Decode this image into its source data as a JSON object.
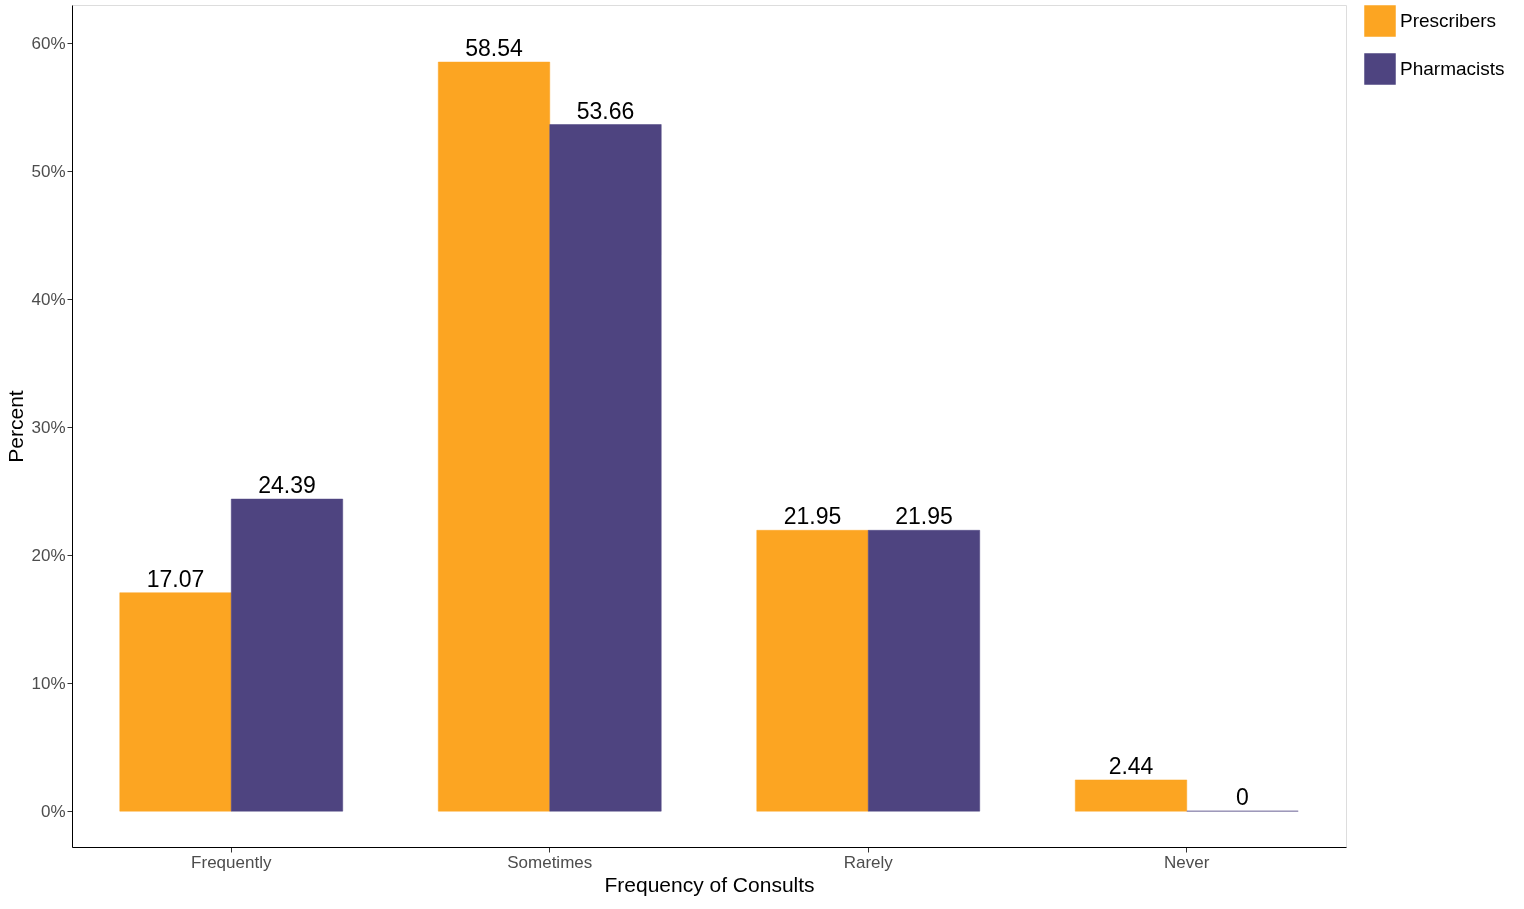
{
  "chart_data": {
    "type": "bar",
    "xlabel": "Frequency of Consults",
    "ylabel": "Percent",
    "categories": [
      "Frequently",
      "Sometimes",
      "Rarely",
      "Never"
    ],
    "series": [
      {
        "name": "Prescribers",
        "color": "#fca522",
        "values": [
          17.07,
          58.54,
          21.95,
          2.44
        ]
      },
      {
        "name": "Pharmacists",
        "color": "#4e4480",
        "values": [
          24.39,
          53.66,
          21.95,
          0
        ]
      }
    ],
    "ylim": [
      -2.8,
      63
    ],
    "yticks": [
      {
        "value": 0,
        "label": "0%"
      },
      {
        "value": 10,
        "label": "10%"
      },
      {
        "value": 20,
        "label": "20%"
      },
      {
        "value": 30,
        "label": "30%"
      },
      {
        "value": 40,
        "label": "40%"
      },
      {
        "value": 50,
        "label": "50%"
      },
      {
        "value": 60,
        "label": "60%"
      }
    ],
    "data_labels": true,
    "grid": false,
    "legend": "right"
  }
}
